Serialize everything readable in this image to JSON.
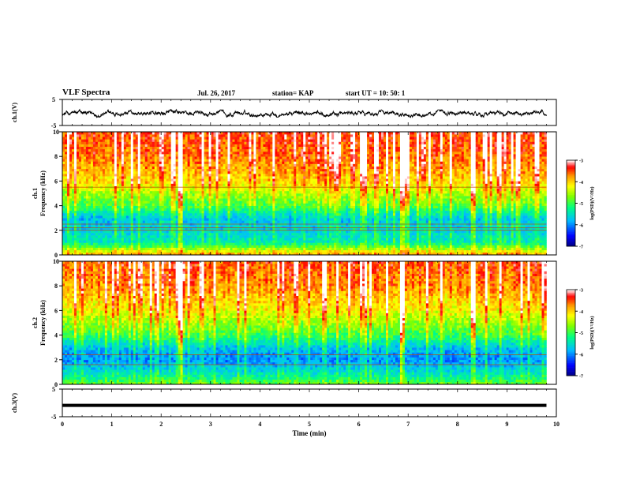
{
  "header": {
    "title": "VLF Spectra",
    "date": "Jul. 26, 2017",
    "station": "station= KAP",
    "start_ut": "start  UT =  10: 50: 1"
  },
  "chart_data": [
    {
      "id": "ch1-waveform",
      "type": "line",
      "ylabel": "ch.1(V)",
      "xlim": [
        0,
        9.8
      ],
      "ylim": [
        -5,
        5
      ],
      "yticks": [
        "5",
        "-5"
      ],
      "description_level": "noisy waveform, mostly within about -1.5 to +0.5 V",
      "series": [
        {
          "values_mean": -0.4,
          "values_spread": 1.4
        }
      ]
    },
    {
      "id": "ch1-spectrogram",
      "type": "heatmap",
      "ylabel": "ch.1\nFrequency (kHz)",
      "xlim": [
        0,
        9.8
      ],
      "ylim": [
        0,
        10
      ],
      "yticks": [
        "0",
        "2",
        "4",
        "6",
        "8",
        "10"
      ],
      "colorbar": {
        "label": "log(PSD)(V²/Hz)",
        "range": [
          -7,
          -3
        ],
        "ticks": [
          "-3",
          "-4",
          "-5",
          "-6",
          "-7"
        ]
      },
      "profile_log_psd_by_freq_khz": [
        [
          0,
          -3.8
        ],
        [
          0.5,
          -4.6
        ],
        [
          1,
          -5.4
        ],
        [
          2,
          -5.6
        ],
        [
          3,
          -5.7
        ],
        [
          4,
          -4.9
        ],
        [
          5,
          -4.5
        ],
        [
          6,
          -4.0
        ],
        [
          8,
          -3.6
        ],
        [
          10,
          -3.4
        ]
      ],
      "strong_bursts_min": [
        2.4,
        6.9,
        8.3
      ],
      "horizontal_lines_khz": [
        2.0,
        2.2,
        2.5,
        5.5
      ]
    },
    {
      "id": "ch2-spectrogram",
      "type": "heatmap",
      "ylabel": "ch.2\nFrequency (kHz)",
      "xlim": [
        0,
        9.8
      ],
      "ylim": [
        0,
        10
      ],
      "yticks": [
        "0",
        "2",
        "4",
        "6",
        "8",
        "10"
      ],
      "colorbar": {
        "label": "log(PSD)(V²/Hz)",
        "range": [
          -7,
          -3
        ],
        "ticks": [
          "-3",
          "-4",
          "-5",
          "-6",
          "-7"
        ]
      },
      "profile_log_psd_by_freq_khz": [
        [
          0,
          -4.8
        ],
        [
          0.5,
          -5.2
        ],
        [
          1,
          -5.5
        ],
        [
          2,
          -6.0
        ],
        [
          3,
          -5.7
        ],
        [
          4,
          -5.0
        ],
        [
          5,
          -4.6
        ],
        [
          6,
          -4.2
        ],
        [
          8,
          -3.7
        ],
        [
          10,
          -3.5
        ]
      ],
      "strong_bursts_min": [
        2.4,
        6.9,
        8.3
      ],
      "horizontal_lines_khz": [
        1.6,
        2.4
      ]
    },
    {
      "id": "ch3-waveform",
      "type": "line",
      "ylabel": "ch.3(V)",
      "xlabel": "Time (min)",
      "xlim": [
        0,
        9.8
      ],
      "ylim": [
        -5,
        5
      ],
      "yticks": [
        "5",
        "-5"
      ],
      "xticks": [
        "0",
        "1",
        "2",
        "3",
        "4",
        "5",
        "6",
        "7",
        "8",
        "9",
        "10"
      ],
      "series": [
        {
          "constant_value": -0.9
        }
      ]
    }
  ],
  "colors": {
    "colormap": [
      "#000080",
      "#0000ff",
      "#00bfff",
      "#00ff80",
      "#7fff00",
      "#ffff00",
      "#ff8000",
      "#ff0000",
      "#ffffff"
    ]
  }
}
